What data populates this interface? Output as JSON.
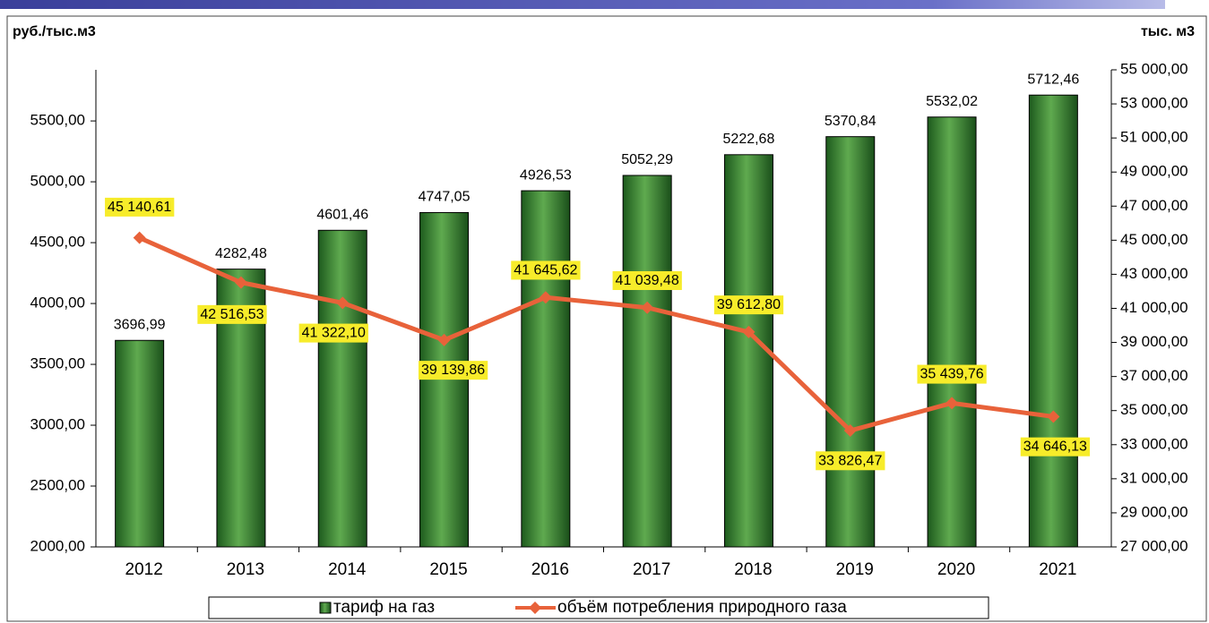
{
  "chart_data": {
    "type": "bar_line",
    "y_label": "руб./тыс.м3",
    "y2_label": "тыс. м3",
    "categories": [
      "2012",
      "2013",
      "2014",
      "2015",
      "2016",
      "2017",
      "2018",
      "2019",
      "2020",
      "2021"
    ],
    "series": [
      {
        "name": "тариф на газ",
        "type": "bar",
        "color": "#2f7a2f",
        "values": [
          3696.99,
          4282.48,
          4601.46,
          4747.05,
          4926.53,
          5052.29,
          5222.68,
          5370.84,
          5532.02,
          5712.46
        ],
        "value_labels": [
          "3696,99",
          "4282,48",
          "4601,46",
          "4747,05",
          "4926,53",
          "5052,29",
          "5222,68",
          "5370,84",
          "5532,02",
          "5712,46"
        ]
      },
      {
        "name": "объём потребления природного газа",
        "type": "line",
        "axis": "y2",
        "color": "#e8623a",
        "values": [
          45140.61,
          42516.53,
          41322.1,
          39139.86,
          41645.62,
          41039.48,
          39612.8,
          33826.47,
          35439.76,
          34646.13
        ],
        "value_labels": [
          "45 140,61",
          "42 516,53",
          "41 322,10",
          "39 139,86",
          "41 645,62",
          "41 039,48",
          "39 612,80",
          "33 826,47",
          "35 439,76",
          "34 646,13"
        ]
      }
    ],
    "ylim": [
      2000,
      5920
    ],
    "yticks": [
      {
        "value": 2000,
        "label": "2000,00"
      },
      {
        "value": 2500,
        "label": "2500,00"
      },
      {
        "value": 3000,
        "label": "3000,00"
      },
      {
        "value": 3500,
        "label": "3500,00"
      },
      {
        "value": 4000,
        "label": "4000,00"
      },
      {
        "value": 4500,
        "label": "4500,00"
      },
      {
        "value": 5000,
        "label": "5000,00"
      },
      {
        "value": 5500,
        "label": "5500,00"
      }
    ],
    "y2lim": [
      27000,
      55000
    ],
    "y2ticks": [
      {
        "value": 27000,
        "label": "27 000,00"
      },
      {
        "value": 29000,
        "label": "29 000,00"
      },
      {
        "value": 31000,
        "label": "31 000,00"
      },
      {
        "value": 33000,
        "label": "33 000,00"
      },
      {
        "value": 35000,
        "label": "35 000,00"
      },
      {
        "value": 37000,
        "label": "37 000,00"
      },
      {
        "value": 39000,
        "label": "39 000,00"
      },
      {
        "value": 41000,
        "label": "41 000,00"
      },
      {
        "value": 43000,
        "label": "43 000,00"
      },
      {
        "value": 45000,
        "label": "45 000,00"
      },
      {
        "value": 47000,
        "label": "47 000,00"
      },
      {
        "value": 49000,
        "label": "49 000,00"
      },
      {
        "value": 51000,
        "label": "51 000,00"
      },
      {
        "value": 53000,
        "label": "53 000,00"
      },
      {
        "value": 55000,
        "label": "55 000,00"
      }
    ],
    "legend": "bottom"
  }
}
